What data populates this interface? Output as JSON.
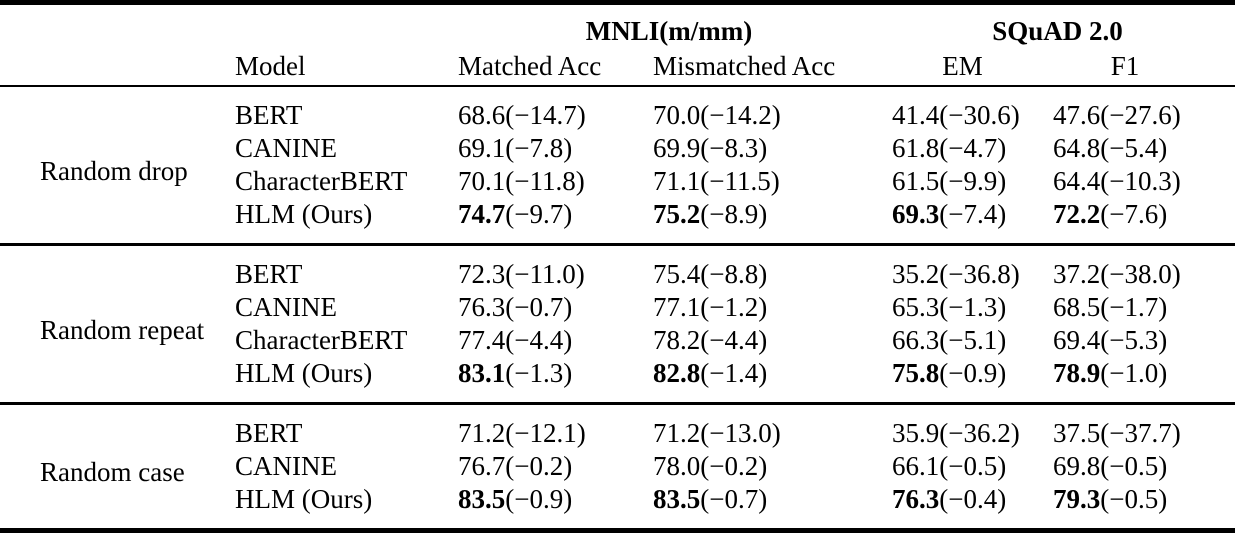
{
  "page": {
    "background": "#ffffff",
    "text_color": "#000000"
  },
  "table": {
    "header_groups": [
      {
        "label": "MNLI(m/mm)"
      },
      {
        "label": "SQuAD 2.0"
      }
    ],
    "columns": [
      "Model",
      "Matched Acc",
      "Mismatched Acc",
      "EM",
      "F1"
    ],
    "groups": [
      {
        "label": "Random drop",
        "rows": [
          {
            "model": "BERT",
            "bold": false,
            "cells": [
              {
                "v": "68.6",
                "d": "(−14.7)"
              },
              {
                "v": "70.0",
                "d": "(−14.2)"
              },
              {
                "v": "41.4",
                "d": "(−30.6)"
              },
              {
                "v": "47.6",
                "d": "(−27.6)"
              }
            ]
          },
          {
            "model": "CANINE",
            "bold": false,
            "cells": [
              {
                "v": "69.1",
                "d": "(−7.8)"
              },
              {
                "v": "69.9",
                "d": "(−8.3)"
              },
              {
                "v": "61.8",
                "d": "(−4.7)"
              },
              {
                "v": "64.8",
                "d": "(−5.4)"
              }
            ]
          },
          {
            "model": "CharacterBERT",
            "bold": false,
            "cells": [
              {
                "v": "70.1",
                "d": "(−11.8)"
              },
              {
                "v": "71.1",
                "d": "(−11.5)"
              },
              {
                "v": "61.5",
                "d": "(−9.9)"
              },
              {
                "v": "64.4",
                "d": "(−10.3)"
              }
            ]
          },
          {
            "model": "HLM (Ours)",
            "bold": true,
            "cells": [
              {
                "v": "74.7",
                "d": "(−9.7)"
              },
              {
                "v": "75.2",
                "d": "(−8.9)"
              },
              {
                "v": "69.3",
                "d": "(−7.4)"
              },
              {
                "v": "72.2",
                "d": "(−7.6)"
              }
            ]
          }
        ]
      },
      {
        "label": "Random repeat",
        "rows": [
          {
            "model": "BERT",
            "bold": false,
            "cells": [
              {
                "v": "72.3",
                "d": "(−11.0)"
              },
              {
                "v": "75.4",
                "d": "(−8.8)"
              },
              {
                "v": "35.2",
                "d": "(−36.8)"
              },
              {
                "v": "37.2",
                "d": "(−38.0)"
              }
            ]
          },
          {
            "model": "CANINE",
            "bold": false,
            "cells": [
              {
                "v": "76.3",
                "d": "(−0.7)"
              },
              {
                "v": "77.1",
                "d": "(−1.2)"
              },
              {
                "v": "65.3",
                "d": "(−1.3)"
              },
              {
                "v": "68.5",
                "d": "(−1.7)"
              }
            ]
          },
          {
            "model": "CharacterBERT",
            "bold": false,
            "cells": [
              {
                "v": "77.4",
                "d": "(−4.4)"
              },
              {
                "v": "78.2",
                "d": "(−4.4)"
              },
              {
                "v": "66.3",
                "d": "(−5.1)"
              },
              {
                "v": "69.4",
                "d": "(−5.3)"
              }
            ]
          },
          {
            "model": "HLM (Ours)",
            "bold": true,
            "cells": [
              {
                "v": "83.1",
                "d": "(−1.3)"
              },
              {
                "v": "82.8",
                "d": "(−1.4)"
              },
              {
                "v": "75.8",
                "d": "(−0.9)"
              },
              {
                "v": "78.9",
                "d": "(−1.0)"
              }
            ]
          }
        ]
      },
      {
        "label": "Random case",
        "rows": [
          {
            "model": "BERT",
            "bold": false,
            "cells": [
              {
                "v": "71.2",
                "d": "(−12.1)"
              },
              {
                "v": "71.2",
                "d": "(−13.0)"
              },
              {
                "v": "35.9",
                "d": "(−36.2)"
              },
              {
                "v": "37.5",
                "d": "(−37.7)"
              }
            ]
          },
          {
            "model": "CANINE",
            "bold": false,
            "cells": [
              {
                "v": "76.7",
                "d": "(−0.2)"
              },
              {
                "v": "78.0",
                "d": "(−0.2)"
              },
              {
                "v": "66.1",
                "d": "(−0.5)"
              },
              {
                "v": "69.8",
                "d": "(−0.5)"
              }
            ]
          },
          {
            "model": "HLM (Ours)",
            "bold": true,
            "cells": [
              {
                "v": "83.5",
                "d": "(−0.9)"
              },
              {
                "v": "83.5",
                "d": "(−0.7)"
              },
              {
                "v": "76.3",
                "d": "(−0.4)"
              },
              {
                "v": "79.3",
                "d": "(−0.5)"
              }
            ]
          }
        ]
      }
    ]
  }
}
